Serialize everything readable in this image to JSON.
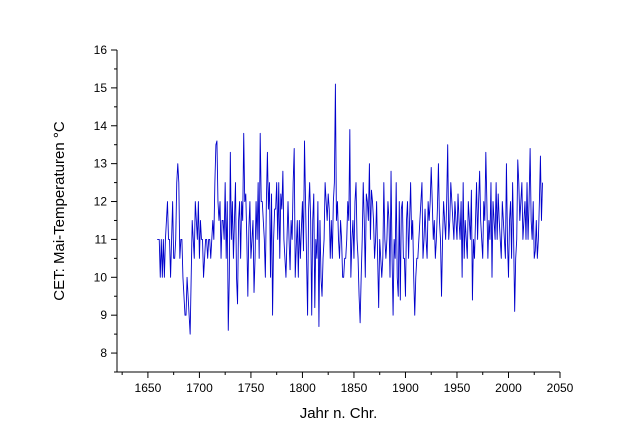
{
  "chart_data": {
    "type": "line",
    "xlabel": "Jahr n. Chr.",
    "ylabel": "CET: Mai-Temperaturen °C",
    "xlim": [
      1620,
      2050
    ],
    "ylim": [
      7.5,
      16
    ],
    "x_ticks": [
      1650,
      1700,
      1750,
      1800,
      1850,
      1900,
      1950,
      2000,
      2050
    ],
    "y_ticks": [
      8,
      9,
      10,
      11,
      12,
      13,
      14,
      15,
      16
    ],
    "x_tick_labels": [
      "1650",
      "1700",
      "1750",
      "1800",
      "1850",
      "1900",
      "1950",
      "2000",
      "2050"
    ],
    "y_tick_labels": [
      "8",
      "9",
      "10",
      "11",
      "12",
      "13",
      "14",
      "15",
      "16"
    ],
    "grid": false,
    "legend": "none",
    "series": [
      {
        "color": "#0000cc",
        "x_start": 1659,
        "x_step": 1,
        "values": [
          11.0,
          11.0,
          11.0,
          10.0,
          11.0,
          10.0,
          11.0,
          10.0,
          11.0,
          11.5,
          12.0,
          11.0,
          11.0,
          10.0,
          11.0,
          12.0,
          10.5,
          10.5,
          11.0,
          12.5,
          13.0,
          12.5,
          10.5,
          11.0,
          11.0,
          10.0,
          9.5,
          9.0,
          9.0,
          10.0,
          9.5,
          9.0,
          8.5,
          10.0,
          11.5,
          11.0,
          10.5,
          12.0,
          11.5,
          11.0,
          12.0,
          10.5,
          11.5,
          11.0,
          11.0,
          10.0,
          10.5,
          11.0,
          11.0,
          10.5,
          11.0,
          11.0,
          10.5,
          11.0,
          11.5,
          11.0,
          12.5,
          13.5,
          13.6,
          12.0,
          11.5,
          12.0,
          10.5,
          11.5,
          11.5,
          11.0,
          12.5,
          10.5,
          12.0,
          8.6,
          10.0,
          13.3,
          11.0,
          12.0,
          10.5,
          11.5,
          12.5,
          10.0,
          9.3,
          11.5,
          12.0,
          10.5,
          12.0,
          11.5,
          13.8,
          12.0,
          12.2,
          11.0,
          9.5,
          11.3,
          12.0,
          10.5,
          11.0,
          11.5,
          9.6,
          10.5,
          12.0,
          11.0,
          12.5,
          10.5,
          13.8,
          12.0,
          12.0,
          11.5,
          11.0,
          10.0,
          12.0,
          13.3,
          11.8,
          12.5,
          10.0,
          12.2,
          9.0,
          11.0,
          11.8,
          11.8,
          12.5,
          11.0,
          12.5,
          10.5,
          12.2,
          11.8,
          12.8,
          11.0,
          10.5,
          10.0,
          11.0,
          12.0,
          11.0,
          10.2,
          11.5,
          11.0,
          12.5,
          13.4,
          10.0,
          10.8,
          11.5,
          10.0,
          11.5,
          10.5,
          11.3,
          12.0,
          10.7,
          13.6,
          12.0,
          10.5,
          9.0,
          11.8,
          12.5,
          11.5,
          9.0,
          11.5,
          12.2,
          9.2,
          11.0,
          10.5,
          12.0,
          8.7,
          11.5,
          10.0,
          9.5,
          10.5,
          11.0,
          12.5,
          12.0,
          11.5,
          12.2,
          11.8,
          10.5,
          11.5,
          10.5,
          12.0,
          12.5,
          15.1,
          11.5,
          12.0,
          11.0,
          10.5,
          11.5,
          11.0,
          10.0,
          10.0,
          10.5,
          10.5,
          11.0,
          12.0,
          11.5,
          13.9,
          10.0,
          11.0,
          11.5,
          10.5,
          12.0,
          12.5,
          11.0,
          10.5,
          9.5,
          8.8,
          10.0,
          11.0,
          12.5,
          11.5,
          10.0,
          12.2,
          12.0,
          11.5,
          13.0,
          11.0,
          12.3,
          12.0,
          11.5,
          10.5,
          11.0,
          12.0,
          10.5,
          9.2,
          11.0,
          10.5,
          10.0,
          10.5,
          12.5,
          11.0,
          10.5,
          11.0,
          12.0,
          11.5,
          10.0,
          12.8,
          10.5,
          9.0,
          11.0,
          10.5,
          12.5,
          10.0,
          9.5,
          12.0,
          9.4,
          11.8,
          12.0,
          10.5,
          10.5,
          9.5,
          11.5,
          12.0,
          10.5,
          11.5,
          12.5,
          11.0,
          11.5,
          10.0,
          9.0,
          10.0,
          10.5,
          10.5,
          11.0,
          11.5,
          12.0,
          12.5,
          10.5,
          11.0,
          11.8,
          11.0,
          10.5,
          12.0,
          11.5,
          12.0,
          12.9,
          12.0,
          11.0,
          11.5,
          10.5,
          11.0,
          11.8,
          13.0,
          11.5,
          11.0,
          9.5,
          11.0,
          12.0,
          11.5,
          11.0,
          12.0,
          13.5,
          11.0,
          11.5,
          12.5,
          12.0,
          11.5,
          11.0,
          12.0,
          11.5,
          11.0,
          12.2,
          11.5,
          11.0,
          12.0,
          10.0,
          12.5,
          10.5,
          11.5,
          11.0,
          10.5,
          12.0,
          11.5,
          11.0,
          12.3,
          9.4,
          11.0,
          10.5,
          11.5,
          12.5,
          11.0,
          12.0,
          12.8,
          11.5,
          11.0,
          10.5,
          12.0,
          11.5,
          13.3,
          12.0,
          10.5,
          11.5,
          11.0,
          12.5,
          10.0,
          12.0,
          11.5,
          11.0,
          12.5,
          11.0,
          12.2,
          11.5,
          11.0,
          10.5,
          12.0,
          11.5,
          11.0,
          10.5,
          13.0,
          11.0,
          10.0,
          11.5,
          12.0,
          10.5,
          12.5,
          11.0,
          9.1,
          10.5,
          11.0,
          13.1,
          12.5,
          11.5,
          12.0,
          12.5,
          11.0,
          11.5,
          12.0,
          11.0,
          12.5,
          11.0,
          12.0,
          13.4,
          11.5,
          11.0,
          12.0,
          10.5,
          10.7,
          11.5,
          10.5,
          11.0,
          12.0,
          13.2,
          11.5,
          12.5
        ]
      }
    ]
  }
}
